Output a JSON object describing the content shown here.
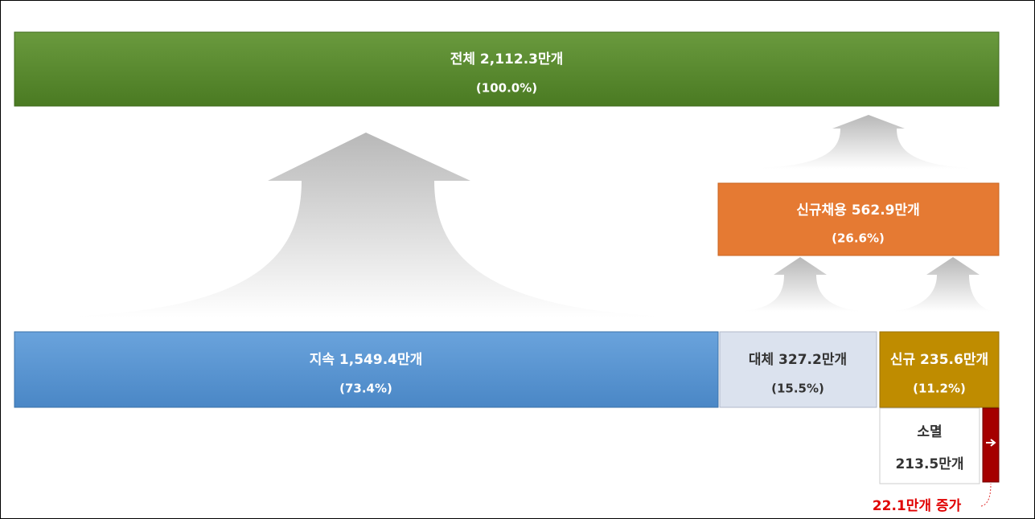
{
  "total": {
    "label": "전체 2,112.3만개",
    "share": "(100.0%)"
  },
  "new_hiring": {
    "label": "신규채용 562.9만개",
    "share": "(26.6%)"
  },
  "continued": {
    "label": "지속 1,549.4만개",
    "share": "(73.4%)"
  },
  "replaced": {
    "label": "대체 327.2만개",
    "share": "(15.5%)"
  },
  "new": {
    "label": "신규 235.6만개",
    "share": "(11.2%)"
  },
  "extinct": {
    "label": "소멸",
    "amount": "213.5만개"
  },
  "increase": "22.1만개 증가"
}
